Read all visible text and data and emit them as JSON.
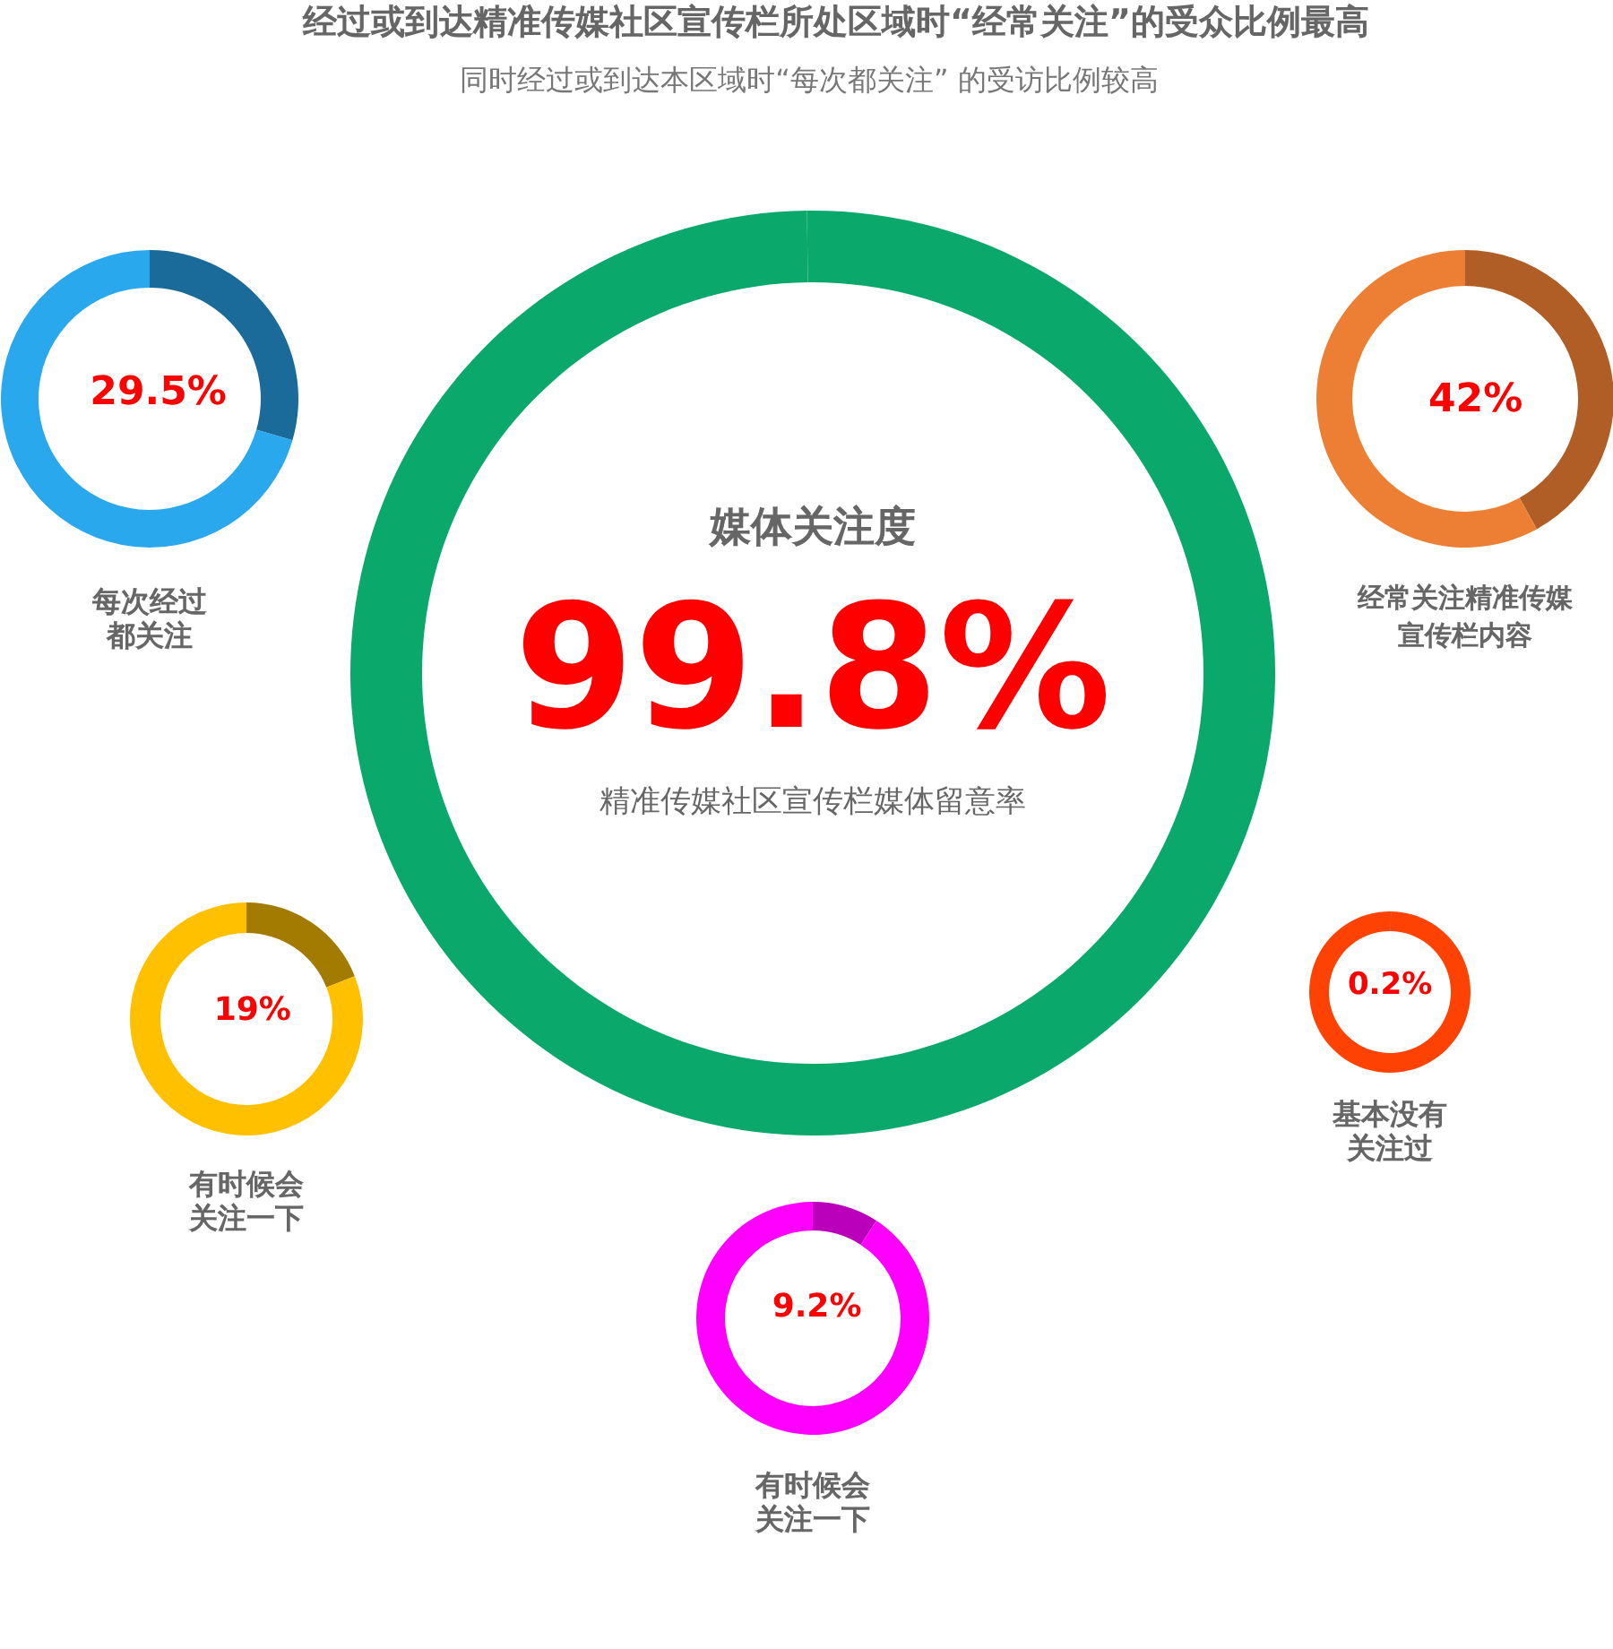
{
  "chart_data": [
    {
      "type": "other",
      "title": "经过或到达精准传媒社区宣传栏所处区域时“经常关注”的受众比例最高",
      "subtitle": "同时经过或到达本区域时“每次都关注” 的受访比例较高"
    },
    {
      "type": "donut",
      "title": "每次经过都关注",
      "categories": [
        null,
        null
      ],
      "values": [
        29.5,
        70.5
      ],
      "colors": [
        "#1a6a9a",
        "#29a8ee"
      ],
      "value_labels": [
        "29.5%",
        null
      ]
    },
    {
      "type": "donut",
      "title": "媒体关注度",
      "subtitle": "精准传媒社区宣传栏媒体留意率",
      "categories": [
        null,
        null
      ],
      "values": [
        99.8,
        0.2
      ],
      "colors": [
        "#0aa86a",
        "#0aa86a"
      ],
      "value_labels": [
        "99.8%",
        null
      ]
    },
    {
      "type": "donut",
      "title": "经常关注精准传媒宣传栏内容",
      "categories": [
        null,
        null
      ],
      "values": [
        42,
        58
      ],
      "colors": [
        "#b05e25",
        "#ed7f35"
      ],
      "value_labels": [
        "42%",
        null
      ]
    },
    {
      "type": "donut",
      "title": "有时候会关注一下",
      "categories": [
        null,
        null
      ],
      "values": [
        19,
        81
      ],
      "colors": [
        "#a37b00",
        "#ffc000"
      ],
      "value_labels": [
        "19%",
        null
      ]
    },
    {
      "type": "donut",
      "title": "基本没有关注过",
      "categories": [
        null,
        null
      ],
      "values": [
        0.2,
        99.8
      ],
      "colors": [
        "#fd4203",
        "#fd4203"
      ],
      "value_labels": [
        "0.2%",
        null
      ]
    },
    {
      "type": "donut",
      "title": "有时候会关注一下",
      "categories": [
        null,
        null
      ],
      "values": [
        9.2,
        90.8
      ],
      "colors": [
        "#bb00bb",
        "#ff00ff"
      ],
      "value_labels": [
        "9.2%",
        null
      ]
    }
  ]
}
